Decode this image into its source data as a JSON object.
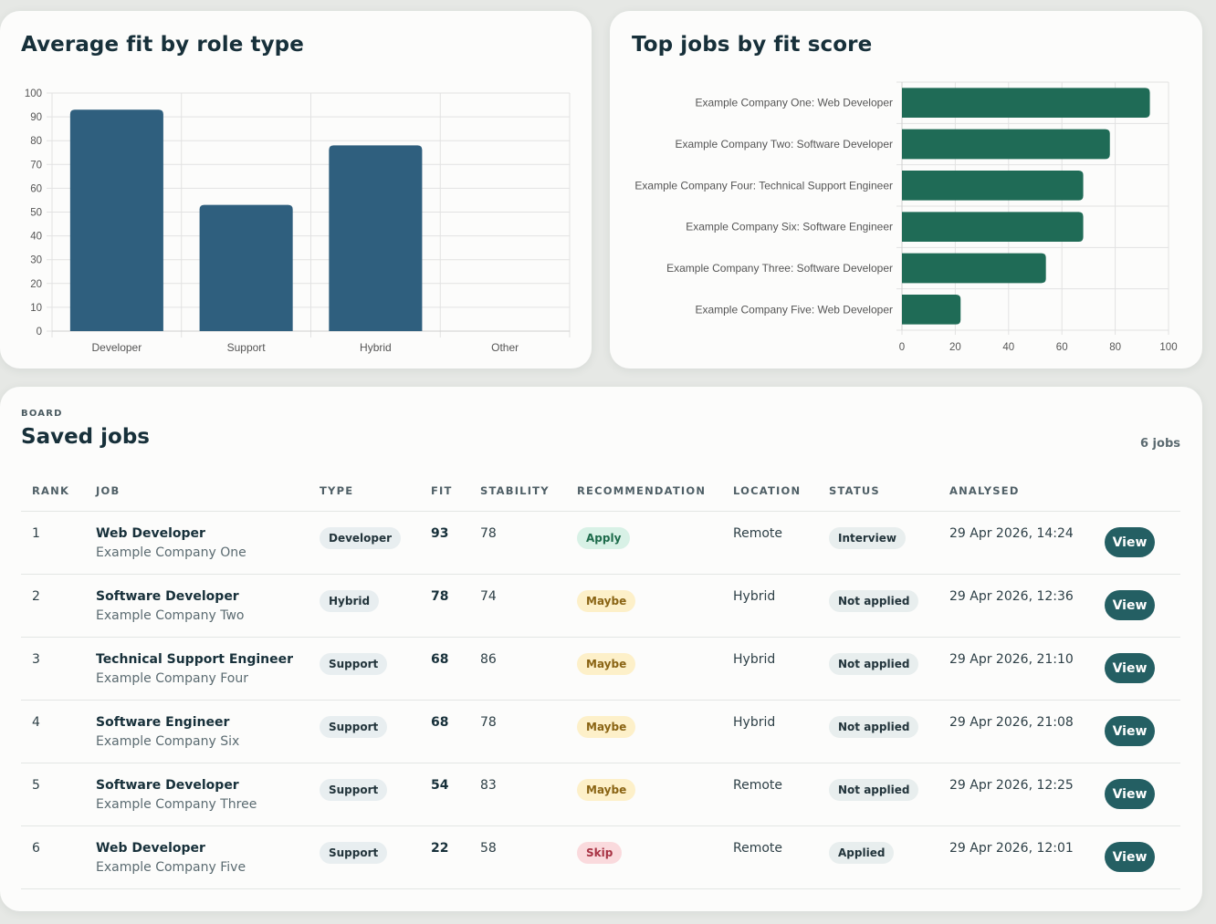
{
  "left_chart": {
    "title": "Average fit by role type"
  },
  "right_chart": {
    "title": "Top jobs by fit score"
  },
  "chart_data": [
    {
      "type": "bar",
      "title": "Average fit by role type",
      "categories": [
        "Developer",
        "Support",
        "Hybrid",
        "Other"
      ],
      "values": [
        93,
        53,
        78,
        0
      ],
      "ylim": [
        0,
        100
      ],
      "yticks": [
        "0",
        "10",
        "20",
        "30",
        "40",
        "50",
        "60",
        "70",
        "80",
        "90",
        "100"
      ],
      "grid": true,
      "color": "#2f5f7e"
    },
    {
      "type": "bar",
      "orientation": "horizontal",
      "title": "Top jobs by fit score",
      "categories": [
        "Example Company One: Web Developer",
        "Example Company Two: Software Developer",
        "Example Company Four: Technical Support Engineer",
        "Example Company Six: Software Engineer",
        "Example Company Three: Software Developer",
        "Example Company Five: Web Developer"
      ],
      "values": [
        93,
        78,
        68,
        68,
        54,
        22
      ],
      "xlim": [
        0,
        100
      ],
      "xticks": [
        "0",
        "20",
        "40",
        "60",
        "80",
        "100"
      ],
      "grid": true,
      "color": "#1f6b56"
    }
  ],
  "board": {
    "eyebrow": "BOARD",
    "title": "Saved jobs",
    "count": "6 jobs",
    "columns": [
      "RANK",
      "JOB",
      "TYPE",
      "FIT",
      "STABILITY",
      "RECOMMENDATION",
      "LOCATION",
      "STATUS",
      "ANALYSED"
    ],
    "view_label": "View",
    "rows": [
      {
        "rank": "1",
        "title": "Web Developer",
        "company": "Example Company One",
        "type": "Developer",
        "fit": "93",
        "stability": "78",
        "recommendation": "Apply",
        "location": "Remote",
        "status": "Interview",
        "analysed": "29 Apr 2026, 14:24"
      },
      {
        "rank": "2",
        "title": "Software Developer",
        "company": "Example Company Two",
        "type": "Hybrid",
        "fit": "78",
        "stability": "74",
        "recommendation": "Maybe",
        "location": "Hybrid",
        "status": "Not applied",
        "analysed": "29 Apr 2026, 12:36"
      },
      {
        "rank": "3",
        "title": "Technical Support Engineer",
        "company": "Example Company Four",
        "type": "Support",
        "fit": "68",
        "stability": "86",
        "recommendation": "Maybe",
        "location": "Hybrid",
        "status": "Not applied",
        "analysed": "29 Apr 2026, 21:10"
      },
      {
        "rank": "4",
        "title": "Software Engineer",
        "company": "Example Company Six",
        "type": "Support",
        "fit": "68",
        "stability": "78",
        "recommendation": "Maybe",
        "location": "Hybrid",
        "status": "Not applied",
        "analysed": "29 Apr 2026, 21:08"
      },
      {
        "rank": "5",
        "title": "Software Developer",
        "company": "Example Company Three",
        "type": "Support",
        "fit": "54",
        "stability": "83",
        "recommendation": "Maybe",
        "location": "Remote",
        "status": "Not applied",
        "analysed": "29 Apr 2026, 12:25"
      },
      {
        "rank": "6",
        "title": "Web Developer",
        "company": "Example Company Five",
        "type": "Support",
        "fit": "22",
        "stability": "58",
        "recommendation": "Skip",
        "location": "Remote",
        "status": "Applied",
        "analysed": "29 Apr 2026, 12:01"
      }
    ]
  }
}
